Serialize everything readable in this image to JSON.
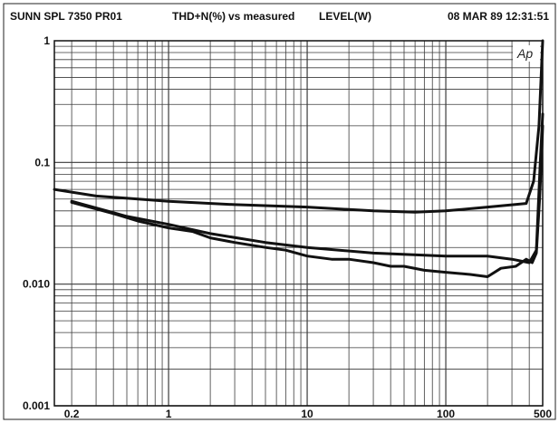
{
  "header": {
    "instrument": "SUNN SPL 7350 PR01",
    "y_quantity": "THD+N(%)",
    "vs": "vs measured",
    "x_quantity": "LEVEL(W)",
    "datetime": "08 MAR 89 12:31:51"
  },
  "logo_text": "Ap",
  "chart_data": {
    "type": "line",
    "title": "",
    "xlabel": "LEVEL(W)",
    "ylabel": "THD+N(%)",
    "x_scale": "log",
    "y_scale": "log",
    "xlim": [
      0.15,
      500
    ],
    "ylim": [
      0.001,
      1
    ],
    "x_tick_labels": [
      {
        "value": 0.2,
        "label": "0.2"
      },
      {
        "value": 1,
        "label": "1"
      },
      {
        "value": 10,
        "label": "10"
      },
      {
        "value": 100,
        "label": "100"
      },
      {
        "value": 500,
        "label": "500"
      }
    ],
    "y_tick_labels": [
      {
        "value": 1,
        "label": "1"
      },
      {
        "value": 0.1,
        "label": "0.1"
      },
      {
        "value": 0.01,
        "label": "0.010"
      },
      {
        "value": 0.001,
        "label": "0.001"
      }
    ],
    "grid": true,
    "series": [
      {
        "values": [
          [
            0.15,
            0.06
          ],
          [
            0.3,
            0.053
          ],
          [
            1,
            0.048
          ],
          [
            3,
            0.045
          ],
          [
            10,
            0.043
          ],
          [
            30,
            0.04
          ],
          [
            60,
            0.039
          ],
          [
            100,
            0.04
          ],
          [
            200,
            0.043
          ],
          [
            380,
            0.046
          ],
          [
            430,
            0.07
          ],
          [
            470,
            0.2
          ],
          [
            500,
            1.0
          ]
        ]
      },
      {
        "values": [
          [
            0.2,
            0.048
          ],
          [
            0.5,
            0.036
          ],
          [
            1,
            0.031
          ],
          [
            2,
            0.026
          ],
          [
            5,
            0.022
          ],
          [
            10,
            0.02
          ],
          [
            30,
            0.018
          ],
          [
            100,
            0.017
          ],
          [
            200,
            0.017
          ],
          [
            300,
            0.016
          ],
          [
            400,
            0.015
          ],
          [
            450,
            0.019
          ],
          [
            480,
            0.1
          ],
          [
            500,
            0.25
          ]
        ]
      },
      {
        "values": [
          [
            0.2,
            0.047
          ],
          [
            0.4,
            0.038
          ],
          [
            0.6,
            0.033
          ],
          [
            1,
            0.029
          ],
          [
            1.5,
            0.027
          ],
          [
            2,
            0.024
          ],
          [
            3,
            0.022
          ],
          [
            5,
            0.02
          ],
          [
            7,
            0.019
          ],
          [
            10,
            0.017
          ],
          [
            15,
            0.016
          ],
          [
            20,
            0.016
          ],
          [
            30,
            0.015
          ],
          [
            40,
            0.014
          ],
          [
            50,
            0.014
          ],
          [
            70,
            0.013
          ],
          [
            100,
            0.0125
          ],
          [
            150,
            0.012
          ],
          [
            200,
            0.0115
          ],
          [
            250,
            0.0135
          ],
          [
            320,
            0.014
          ],
          [
            380,
            0.016
          ],
          [
            420,
            0.015
          ],
          [
            450,
            0.018
          ],
          [
            475,
            0.05
          ],
          [
            490,
            0.11
          ],
          [
            500,
            0.2
          ]
        ]
      }
    ]
  }
}
